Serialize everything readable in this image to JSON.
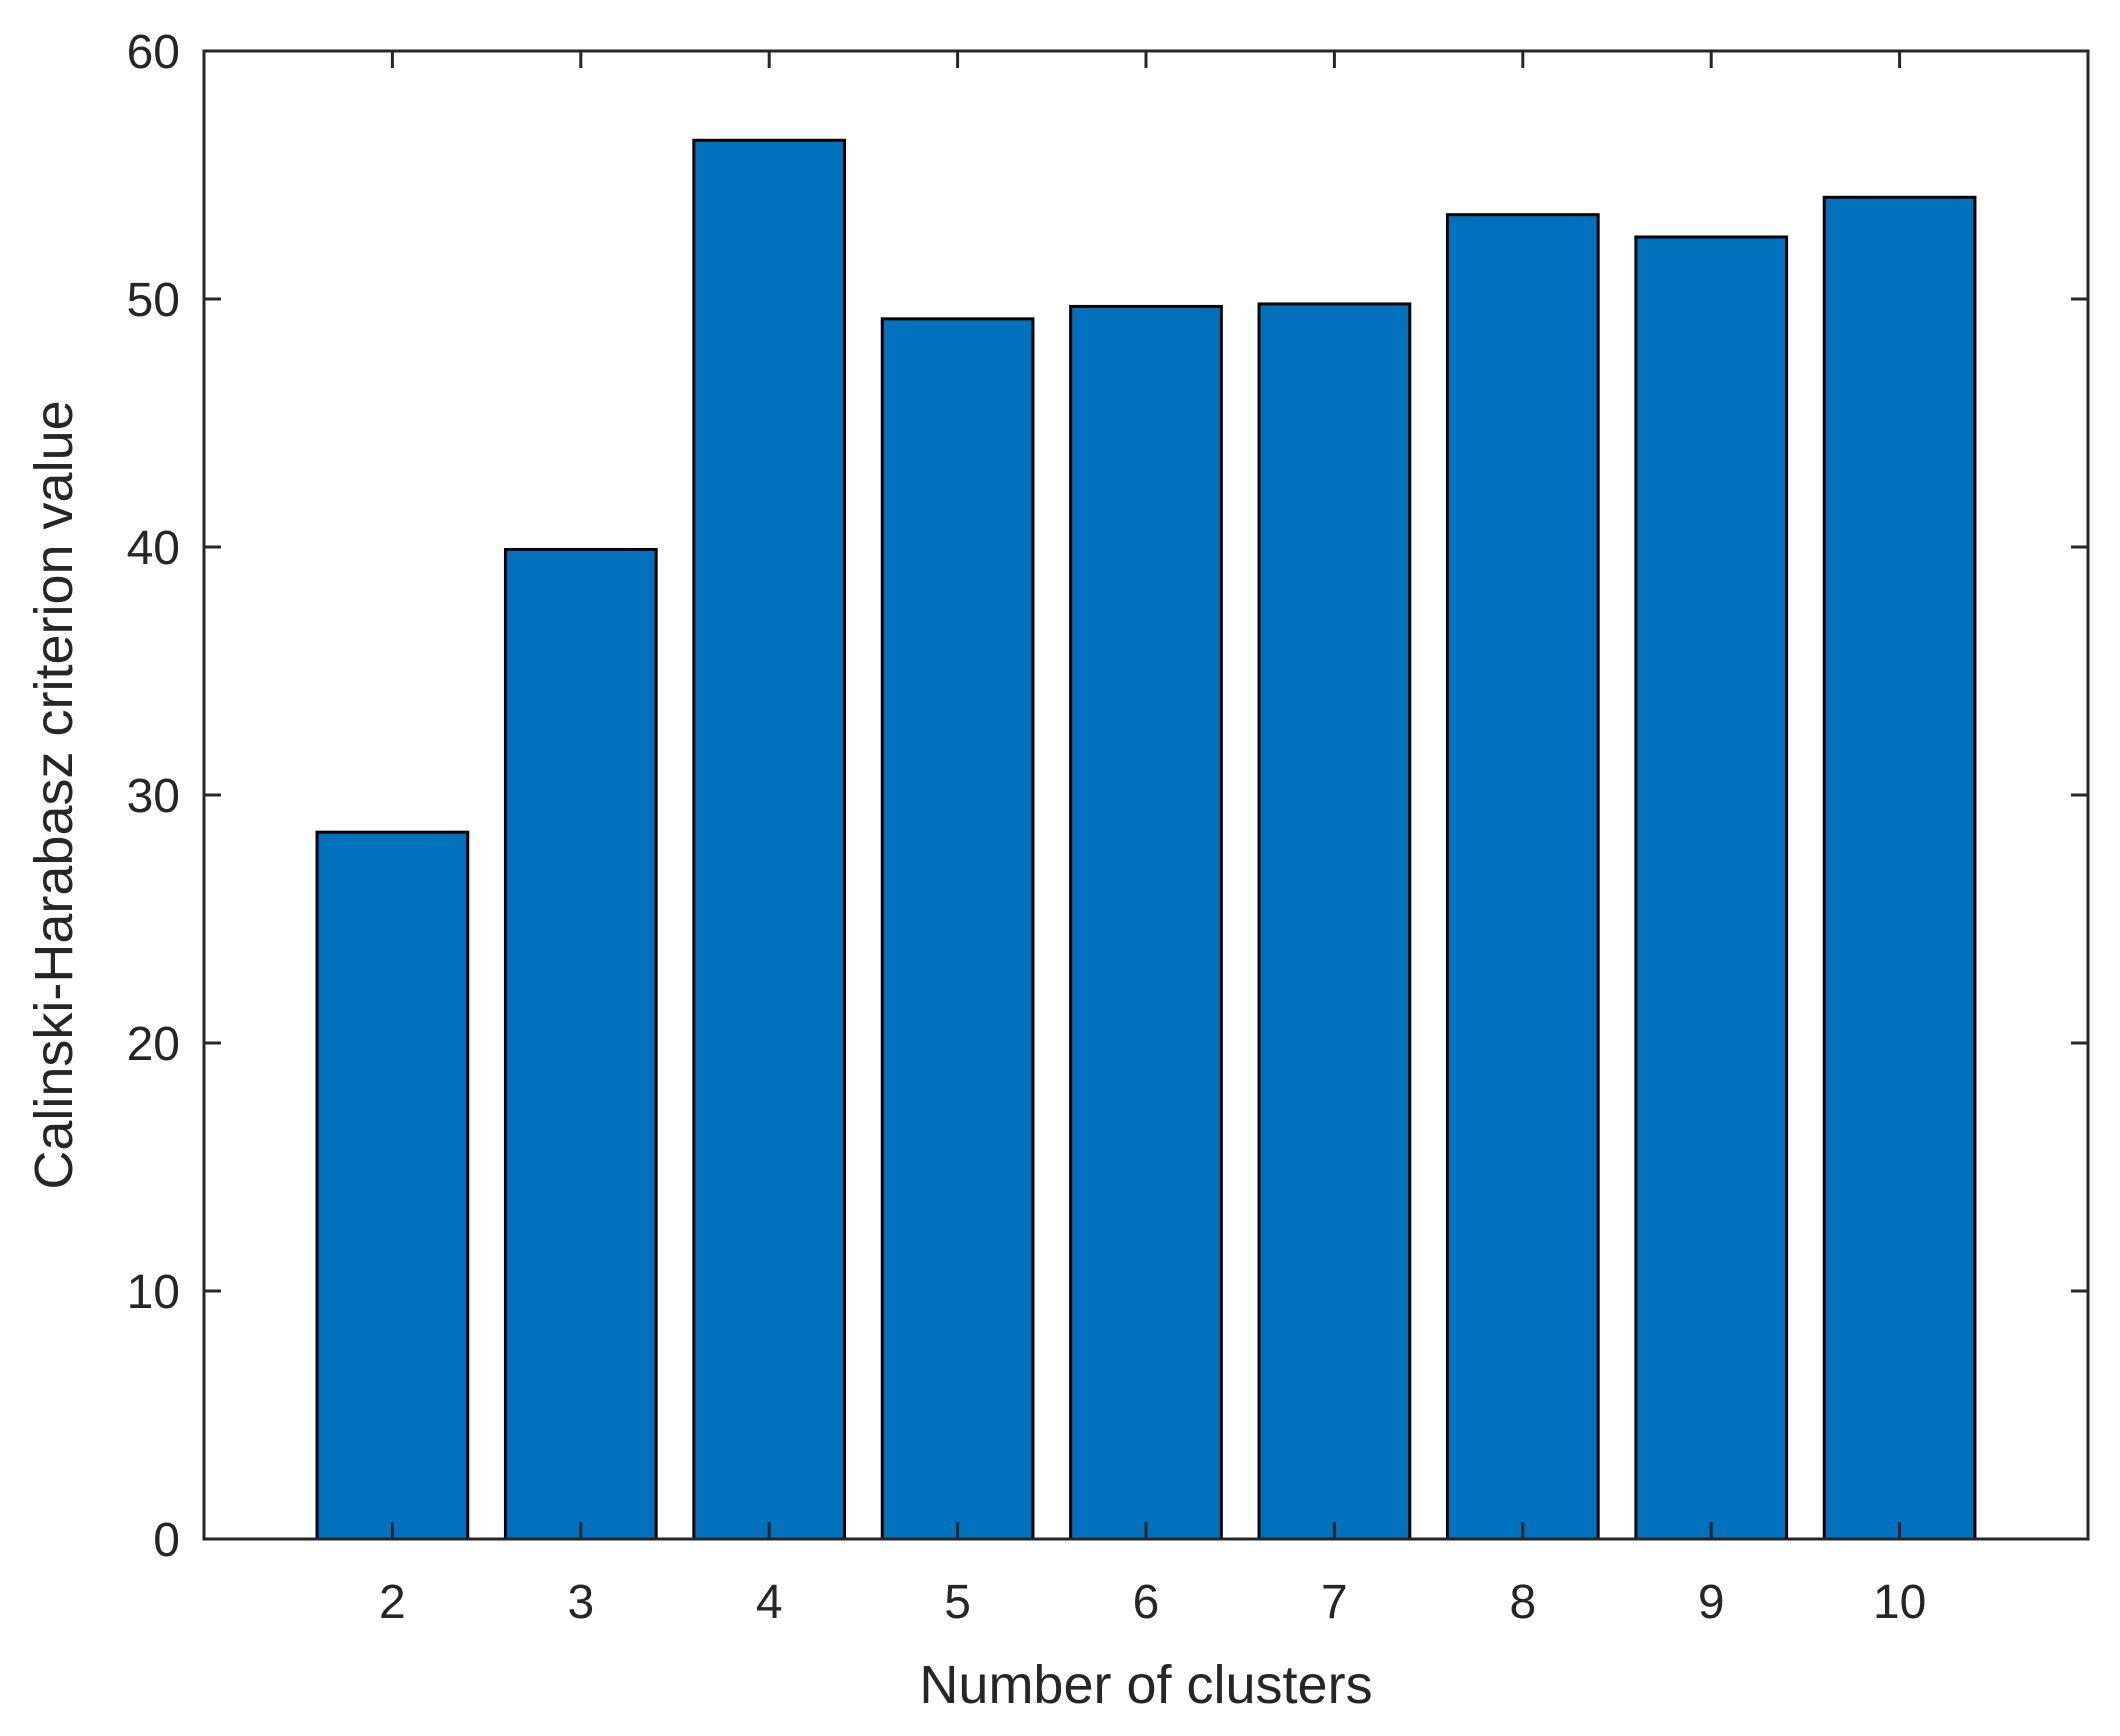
{
  "chart_data": {
    "type": "bar",
    "title": "",
    "xlabel": "Number of clusters",
    "ylabel": "Calinski-Harabasz criterion value",
    "categories": [
      "2",
      "3",
      "4",
      "5",
      "6",
      "7",
      "8",
      "9",
      "10"
    ],
    "values": [
      28.5,
      39.9,
      56.4,
      49.2,
      49.7,
      49.8,
      53.4,
      52.5,
      54.1
    ],
    "xlim": [
      1,
      11
    ],
    "ylim": [
      0,
      60
    ],
    "yticks": [
      0,
      10,
      20,
      30,
      40,
      50,
      60
    ],
    "bar_color": "#0072BD",
    "edge_color": "#000000",
    "grid": false,
    "legend": "none"
  }
}
